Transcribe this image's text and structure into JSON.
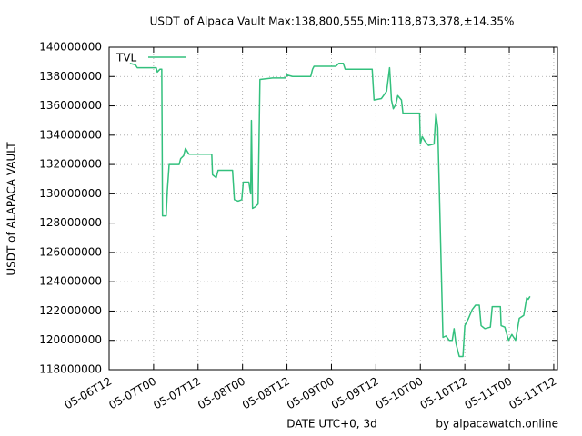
{
  "chart_data": {
    "type": "line",
    "title": "USDT of Alpaca Vault Max:138,800,555,Min:118,873,378,±14.35%",
    "x_label": "DATE UTC+0, 3d",
    "y_label": "USDT of ALAPACA VAULT",
    "annotation": "by alpacawatch.online",
    "grid": true,
    "legend": "top-left",
    "xlim": [
      0,
      121
    ],
    "xticks": [
      {
        "value": 0,
        "label": "05-06T12"
      },
      {
        "value": 12,
        "label": "05-07T00"
      },
      {
        "value": 24,
        "label": "05-07T12"
      },
      {
        "value": 36,
        "label": "05-08T00"
      },
      {
        "value": 48,
        "label": "05-08T12"
      },
      {
        "value": 60,
        "label": "05-09T00"
      },
      {
        "value": 72,
        "label": "05-09T12"
      },
      {
        "value": 84,
        "label": "05-10T00"
      },
      {
        "value": 96,
        "label": "05-10T12"
      },
      {
        "value": 108,
        "label": "05-11T00"
      },
      {
        "value": 120,
        "label": "05-11T12"
      }
    ],
    "ylim": [
      118000000,
      140000000
    ],
    "yticks": [
      118000000,
      120000000,
      122000000,
      124000000,
      126000000,
      128000000,
      130000000,
      132000000,
      134000000,
      136000000,
      138000000,
      140000000
    ],
    "x": [
      5.6,
      7.1,
      7.6,
      12.7,
      13.0,
      13.7,
      14.2,
      14.3,
      14.4,
      15.4,
      15.7,
      16.2,
      18.9,
      19.3,
      20.1,
      20.6,
      21.3,
      21.6,
      27.7,
      27.9,
      28.9,
      29.4,
      33.3,
      33.8,
      34.8,
      35.8,
      36.2,
      37.7,
      38.2,
      38.4,
      38.7,
      39.4,
      40.2,
      40.7,
      44.1,
      47.5,
      48.0,
      49.5,
      54.4,
      54.9,
      55.3,
      61.2,
      62.0,
      63.2,
      63.7,
      71.0,
      71.5,
      73.5,
      74.9,
      75.7,
      76.2,
      76.7,
      77.4,
      77.9,
      78.9,
      79.3,
      83.8,
      84.0,
      84.5,
      85.2,
      86.2,
      87.7,
      88.2,
      88.7,
      89.1,
      89.6,
      90.1,
      90.9,
      91.8,
      92.6,
      93.1,
      93.6,
      94.5,
      95.5,
      96.0,
      97.0,
      98.0,
      98.9,
      99.9,
      100.4,
      101.4,
      102.9,
      103.4,
      105.6,
      105.8,
      106.8,
      107.8,
      108.7,
      109.7,
      110.7,
      111.9,
      112.7,
      113.1,
      113.6
    ],
    "series": [
      {
        "name": "TVL",
        "color": "#33c07d",
        "values": [
          138900000,
          138800000,
          138600000,
          138600000,
          138300000,
          138500000,
          138500000,
          133900000,
          128500000,
          128500000,
          130200000,
          132000000,
          132000000,
          132400000,
          132600000,
          133100000,
          132800000,
          132700000,
          132700000,
          131300000,
          131100000,
          131600000,
          131600000,
          129600000,
          129500000,
          129600000,
          130800000,
          130800000,
          130000000,
          135000000,
          129000000,
          129100000,
          129300000,
          137800000,
          137900000,
          137900000,
          138100000,
          138000000,
          138000000,
          138500000,
          138700000,
          138700000,
          138900000,
          138900000,
          138500000,
          138500000,
          136400000,
          136500000,
          137000000,
          138600000,
          136400000,
          135800000,
          136100000,
          136700000,
          136400000,
          135500000,
          135500000,
          133400000,
          133900000,
          133600000,
          133300000,
          133400000,
          135500000,
          134500000,
          130500000,
          125300000,
          120200000,
          120300000,
          120000000,
          120000000,
          120800000,
          119800000,
          118900000,
          118900000,
          121000000,
          121500000,
          122100000,
          122400000,
          122400000,
          121000000,
          120800000,
          120900000,
          122300000,
          122300000,
          121000000,
          120900000,
          120000000,
          120400000,
          120000000,
          121500000,
          121700000,
          122900000,
          122800000,
          123000000
        ]
      }
    ]
  }
}
